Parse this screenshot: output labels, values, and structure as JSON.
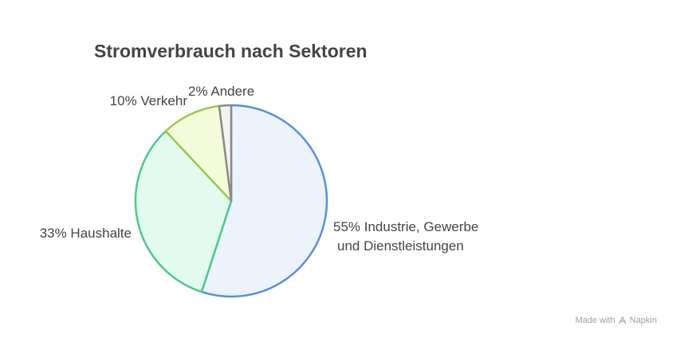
{
  "title": "Stromverbrauch nach Sektoren",
  "footer": {
    "made_with": "Made with",
    "brand": "Napkin"
  },
  "chart_data": {
    "type": "pie",
    "title": "Stromverbrauch nach Sektoren",
    "slices": [
      {
        "label": "55% Industrie, Gewerbe und Dienstleistungen",
        "value": 55,
        "fill": "#edf3fc",
        "stroke": "#5a8fd8"
      },
      {
        "label": "33% Haushalte",
        "value": 33,
        "fill": "#e3fbef",
        "stroke": "#4cc98a"
      },
      {
        "label": "10% Verkehr",
        "value": 10,
        "fill": "#f4fbdb",
        "stroke": "#9cc94a"
      },
      {
        "label": "2% Andere",
        "value": 2,
        "fill": "#f3f3f3",
        "stroke": "#8a8a8a"
      }
    ]
  }
}
